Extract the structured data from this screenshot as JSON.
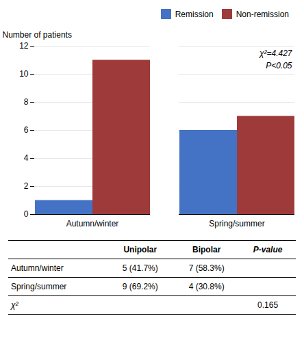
{
  "chart_data": {
    "type": "bar",
    "categories": [
      "Autumn/winter",
      "Spring/summer"
    ],
    "series": [
      {
        "name": "Remission",
        "color": "#4472C4",
        "values": [
          1,
          6
        ]
      },
      {
        "name": "Non-remission",
        "color": "#9E3A3A",
        "values": [
          11,
          7
        ]
      }
    ],
    "ylabel": "Number of patients",
    "ylim": [
      0,
      12
    ],
    "yticks": [
      0,
      2,
      4,
      6,
      8,
      10,
      12
    ],
    "grid": true,
    "legend": "upper right",
    "annotation": "χ²=4.427\nP<0.05",
    "table": {
      "headers": [
        null,
        "Unipolar",
        "Bipolar",
        "P-value"
      ],
      "rows": [
        [
          "Autumn/winter",
          "5 (41.7%)",
          "7 (58.3%)",
          null
        ],
        [
          "Spring/summer",
          "9 (69.2%)",
          "4 (30.8%)",
          null
        ],
        [
          "χ²",
          null,
          null,
          "0.165"
        ]
      ]
    }
  }
}
